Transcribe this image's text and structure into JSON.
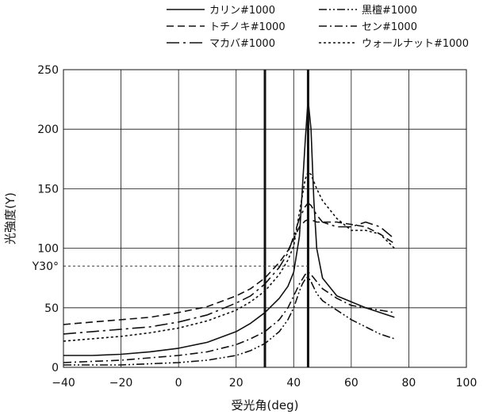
{
  "chart_data": {
    "type": "line",
    "xlabel": "受光角(deg)",
    "ylabel": "光強度(Y)",
    "xlim": [
      -40,
      100
    ],
    "ylim": [
      0,
      250
    ],
    "x_ticks": [
      -40,
      -20,
      0,
      20,
      40,
      60,
      80,
      100
    ],
    "y_ticks": [
      0,
      50,
      100,
      150,
      200,
      250
    ],
    "x_tick_labels": [
      "−40",
      "−20",
      "0",
      "20",
      "40",
      "60",
      "80",
      "100"
    ],
    "y_tick_labels": [
      "0",
      "50",
      "100",
      "150",
      "200",
      "250"
    ],
    "grid": true,
    "legend_position": "top",
    "reference_lines": {
      "vertical": [
        30,
        45
      ],
      "horizontal": {
        "label": "Y30°",
        "value": 85
      }
    },
    "series": [
      {
        "name": "カリン#1000",
        "dash": "solid",
        "x": [
          -40,
          -30,
          -20,
          -10,
          0,
          10,
          20,
          25,
          30,
          35,
          38,
          40,
          42,
          43,
          44,
          45,
          46,
          47,
          48,
          50,
          55,
          60,
          65,
          70,
          75
        ],
        "y": [
          10,
          10,
          11,
          13,
          16,
          21,
          30,
          37,
          46,
          58,
          68,
          80,
          110,
          150,
          190,
          225,
          200,
          140,
          100,
          75,
          60,
          55,
          50,
          46,
          42
        ]
      },
      {
        "name": "黒檀#1000",
        "dash": "dashdotdot",
        "x": [
          -40,
          -30,
          -20,
          -10,
          0,
          10,
          20,
          25,
          30,
          35,
          38,
          40,
          42,
          43,
          44,
          45,
          46,
          48,
          50,
          55,
          60,
          65,
          70,
          75
        ],
        "y": [
          2,
          2,
          2,
          3,
          4,
          6,
          10,
          14,
          20,
          30,
          40,
          50,
          64,
          70,
          74,
          76,
          72,
          62,
          56,
          48,
          40,
          34,
          28,
          24
        ]
      },
      {
        "name": "トチノキ#1000",
        "dash": "dashed",
        "x": [
          -40,
          -30,
          -20,
          -10,
          0,
          10,
          20,
          25,
          30,
          35,
          38,
          40,
          42,
          44,
          45,
          46,
          48,
          50,
          55,
          60,
          65,
          70,
          75
        ],
        "y": [
          36,
          38,
          40,
          42,
          46,
          51,
          60,
          66,
          75,
          88,
          98,
          108,
          118,
          123,
          124,
          124,
          122,
          122,
          122,
          120,
          118,
          112,
          104
        ]
      },
      {
        "name": "セン#1000",
        "dash": "dashdot",
        "x": [
          -40,
          -30,
          -20,
          -10,
          0,
          10,
          20,
          25,
          30,
          35,
          38,
          40,
          42,
          44,
          45,
          46,
          48,
          50,
          55,
          60,
          65,
          70,
          75
        ],
        "y": [
          4,
          5,
          6,
          8,
          10,
          13,
          19,
          24,
          30,
          40,
          50,
          60,
          70,
          78,
          80,
          78,
          72,
          66,
          58,
          52,
          50,
          48,
          46
        ]
      },
      {
        "name": "マカバ#1000",
        "dash": "longdash",
        "x": [
          -40,
          -30,
          -20,
          -10,
          0,
          10,
          20,
          25,
          30,
          35,
          38,
          40,
          42,
          44,
          45,
          46,
          48,
          50,
          55,
          60,
          65,
          70,
          75
        ],
        "y": [
          28,
          30,
          32,
          34,
          38,
          44,
          54,
          60,
          70,
          84,
          96,
          110,
          125,
          135,
          138,
          136,
          128,
          122,
          118,
          118,
          122,
          118,
          108
        ]
      },
      {
        "name": "ウォールナット#1000",
        "dash": "dotted",
        "x": [
          -40,
          -30,
          -20,
          -10,
          0,
          10,
          20,
          25,
          30,
          35,
          38,
          40,
          42,
          44,
          45,
          46,
          47,
          48,
          50,
          55,
          60,
          65,
          70,
          75
        ],
        "y": [
          22,
          24,
          26,
          29,
          33,
          39,
          48,
          55,
          64,
          78,
          90,
          102,
          130,
          158,
          164,
          162,
          156,
          150,
          140,
          125,
          115,
          115,
          112,
          100
        ]
      }
    ]
  }
}
